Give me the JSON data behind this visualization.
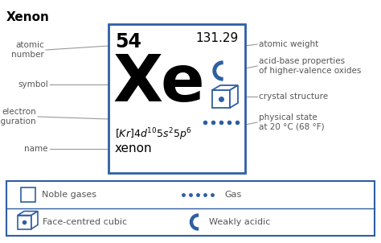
{
  "title": "Xenon",
  "element_symbol": "Xe",
  "atomic_number": "54",
  "atomic_weight": "131.29",
  "name": "xenon",
  "left_labels": [
    "atomic\nnumber",
    "symbol",
    "electron\nconfiguration",
    "name"
  ],
  "right_labels": [
    "atomic weight",
    "acid-base properties\nof higher-valence oxides",
    "crystal structure",
    "physical state\nat 20 °C (68 °F)"
  ],
  "box_color": "#2e5fa3",
  "text_color": "#555555",
  "bg_color": "#ffffff",
  "legend_noble_gas_label": "Noble gases",
  "legend_gas_label": "Gas",
  "legend_fcc_label": "Face-centred cubic",
  "legend_weakly_acidic_label": "Weakly acidic",
  "fig_w": 4.74,
  "fig_h": 3.02,
  "dpi": 100
}
